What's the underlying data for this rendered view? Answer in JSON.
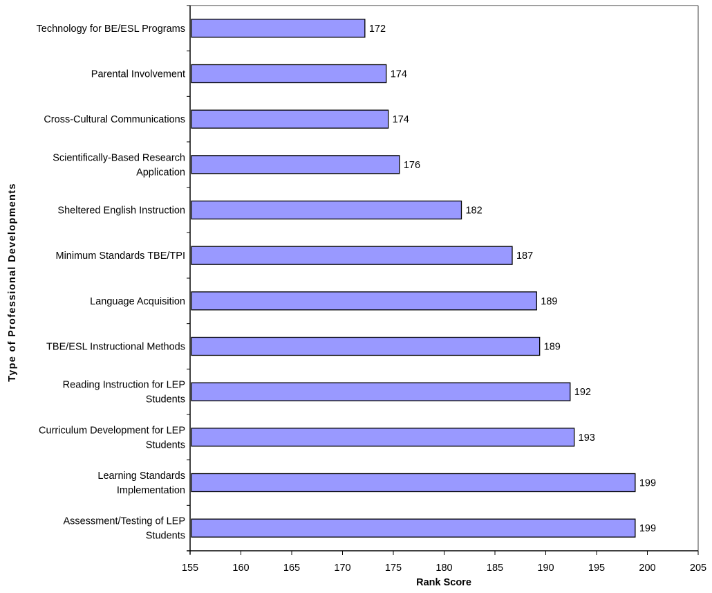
{
  "chart_data": {
    "type": "bar",
    "orientation": "horizontal",
    "categories": [
      "Technology for BE/ESL Programs",
      "Parental Involvement",
      "Cross-Cultural Communications",
      "Scientifically-Based Research Application",
      "Sheltered English Instruction",
      "Minimum Standards TBE/TPI",
      "Language Acquisition",
      "TBE/ESL Instructional Methods",
      "Reading Instruction for LEP Students",
      "Curriculum Development for LEP Students",
      "Learning Standards Implementation",
      "Assessment/Testing of LEP Students"
    ],
    "category_label_lines": [
      [
        "Technology for BE/ESL Programs"
      ],
      [
        "Parental Involvement"
      ],
      [
        "Cross-Cultural Communications"
      ],
      [
        "Scientifically-Based Research",
        "Application"
      ],
      [
        "Sheltered English Instruction"
      ],
      [
        "Minimum Standards TBE/TPI"
      ],
      [
        "Language Acquisition"
      ],
      [
        "TBE/ESL Instructional Methods"
      ],
      [
        "Reading Instruction for LEP",
        "Students"
      ],
      [
        "Curriculum Development for LEP",
        "Students"
      ],
      [
        "Learning Standards",
        "Implementation"
      ],
      [
        "Assessment/Testing of LEP",
        "Students"
      ]
    ],
    "values": [
      172.2,
      174.3,
      174.5,
      175.6,
      181.7,
      186.7,
      189.1,
      189.4,
      192.4,
      192.8,
      198.8,
      198.8
    ],
    "data_labels": [
      "172",
      "174",
      "174",
      "176",
      "182",
      "187",
      "189",
      "189",
      "192",
      "193",
      "199",
      "199"
    ],
    "xlim": [
      155,
      205
    ],
    "xticks": [
      155,
      160,
      165,
      170,
      175,
      180,
      185,
      190,
      195,
      200,
      205
    ],
    "xlabel": "Rank Score",
    "ylabel": "Type of Professional Developments",
    "title": "",
    "grid": false,
    "legend": "none",
    "bar_color": "#9999ff",
    "bar_edge_color": "#000000",
    "frame_color": "#808080"
  }
}
